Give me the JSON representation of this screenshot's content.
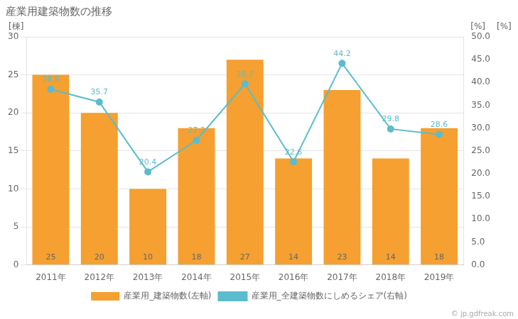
{
  "chart_data": {
    "type": "bar",
    "title": "産業用建築物数の推移",
    "categories": [
      "2011年",
      "2012年",
      "2013年",
      "2014年",
      "2015年",
      "2016年",
      "2017年",
      "2018年",
      "2019年"
    ],
    "series": [
      {
        "name": "産業用_建築物数(左軸)",
        "type": "bar",
        "color": "#f5a030",
        "values": [
          25,
          20,
          10,
          18,
          27,
          14,
          23,
          14,
          18
        ]
      },
      {
        "name": "産業用_全建築物数にしめるシェア(右軸)",
        "type": "line",
        "color": "#5bbccc",
        "marker": "circle",
        "line_style": "solid",
        "axis": "y2",
        "values": [
          38.5,
          35.7,
          20.4,
          27.3,
          39.7,
          22.6,
          44.2,
          29.8,
          28.6
        ]
      }
    ],
    "ylabel": "[棟]",
    "y2label": "[%]",
    "y3label": "[%]",
    "ylim": [
      0,
      30
    ],
    "yticks": [
      0,
      5,
      10,
      15,
      20,
      25,
      30
    ],
    "y2lim": [
      0,
      50.0
    ],
    "y2ticks": [
      {
        "value": 0,
        "label": "0.0"
      },
      {
        "value": 5,
        "label": "5.0"
      },
      {
        "value": 10,
        "label": "10.0"
      },
      {
        "value": 15,
        "label": "15.0"
      },
      {
        "value": 20,
        "label": "20.0"
      },
      {
        "value": 25,
        "label": "25.0"
      },
      {
        "value": 30,
        "label": "30.0"
      },
      {
        "value": 35,
        "label": "35.0"
      },
      {
        "value": 40,
        "label": "40.0"
      },
      {
        "value": 45,
        "label": "45.0"
      },
      {
        "value": 50,
        "label": "50.0"
      }
    ],
    "grid": true,
    "legend": "bottom",
    "data_labels": true,
    "annotation": "© jp.gdfreak.com"
  }
}
